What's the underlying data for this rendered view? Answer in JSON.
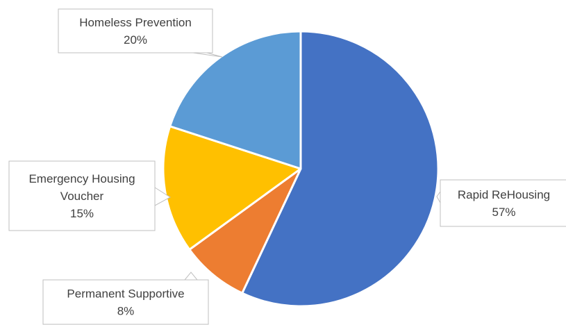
{
  "chart_data": {
    "type": "pie",
    "title": "",
    "slices": [
      {
        "label": [
          "Rapid ReHousing"
        ],
        "value": 57,
        "percent_label": "57%",
        "color": "#4472C4"
      },
      {
        "label": [
          "Permanent Supportive"
        ],
        "value": 8,
        "percent_label": "8%",
        "color": "#ED7D31"
      },
      {
        "label": [
          "Emergency Housing",
          "Voucher"
        ],
        "value": 15,
        "percent_label": "15%",
        "color": "#FFC000"
      },
      {
        "label": [
          "Homeless Prevention"
        ],
        "value": 20,
        "percent_label": "20%",
        "color": "#5B9BD5"
      }
    ],
    "start_angle_deg": 0,
    "direction": "clockwise",
    "slice_border_color": "#ffffff",
    "label_style": "callout",
    "callout_border_color": "#bfbfbf",
    "label_text_color": "#404040"
  }
}
